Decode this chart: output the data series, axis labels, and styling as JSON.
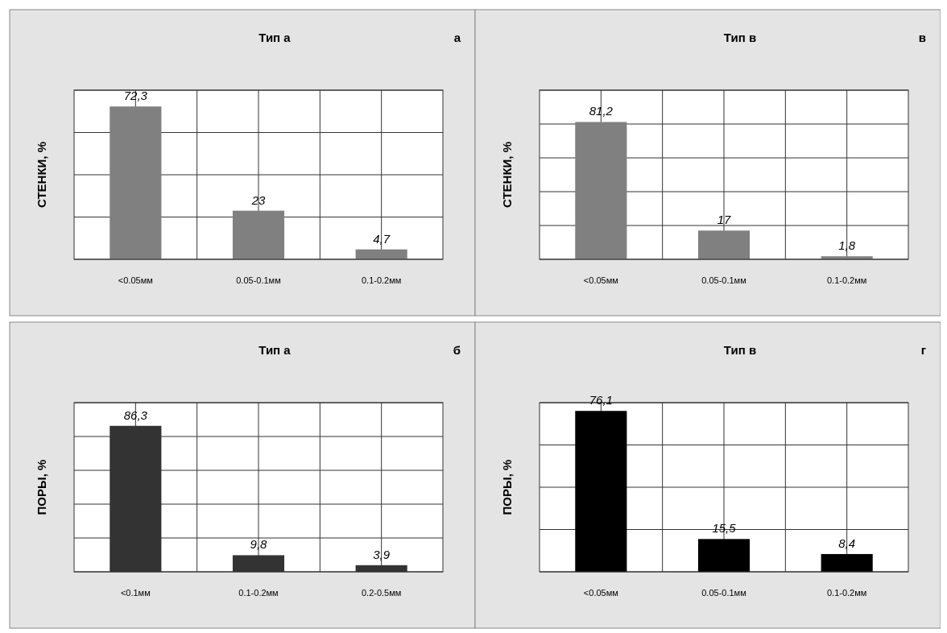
{
  "chart_data": [
    {
      "type": "bar",
      "title": "Тип а",
      "ylabel": "СТЕНКИ, %",
      "annotations": [
        "а"
      ],
      "categories": [
        "<0.05мм",
        "0.05-0.1мм",
        "0.1-0.2мм"
      ],
      "values": [
        72.3,
        23,
        4.7
      ],
      "color": "#808080",
      "ylim": [
        0,
        80
      ],
      "yticks": [
        {
          "value": 0,
          "label": null
        },
        {
          "value": 20,
          "label": null
        },
        {
          "value": 40,
          "label": null
        },
        {
          "value": 60,
          "label": null
        },
        {
          "value": 80,
          "label": null
        }
      ],
      "value_labels": [
        "72,3",
        "23",
        "4,7"
      ],
      "grid": true,
      "tick_labels": "x"
    },
    {
      "type": "bar",
      "title": "Тип в",
      "ylabel": "СТЕНКИ, %",
      "annotations": [
        "в"
      ],
      "categories": [
        "<0.05мм",
        "0.05-0.1мм",
        "0.1-0.2мм"
      ],
      "values": [
        81.2,
        17,
        1.8
      ],
      "color": "#808080",
      "ylim": [
        0,
        100
      ],
      "yticks": [
        {
          "value": 0,
          "label": null
        },
        {
          "value": 20,
          "label": null
        },
        {
          "value": 40,
          "label": null
        },
        {
          "value": 60,
          "label": null
        },
        {
          "value": 80,
          "label": null
        },
        {
          "value": 100,
          "label": null
        }
      ],
      "value_labels": [
        "81,2",
        "17",
        "1,8"
      ],
      "grid": true,
      "tick_labels": "x"
    },
    {
      "type": "bar",
      "title": "Тип а",
      "ylabel": "ПОРЫ, %",
      "annotations": [
        "б"
      ],
      "categories": [
        "<0.1мм",
        "0.1-0.2мм",
        "0.2-0.5мм"
      ],
      "values": [
        86.3,
        9.8,
        3.9
      ],
      "color": "#333333",
      "ylim": [
        0,
        100
      ],
      "yticks": [
        {
          "value": 0,
          "label": null
        },
        {
          "value": 20,
          "label": null
        },
        {
          "value": 40,
          "label": null
        },
        {
          "value": 60,
          "label": null
        },
        {
          "value": 80,
          "label": null
        },
        {
          "value": 100,
          "label": null
        }
      ],
      "value_labels": [
        "86,3",
        "9,8",
        "3,9"
      ],
      "grid": true,
      "tick_labels": "x"
    },
    {
      "type": "bar",
      "title": "Тип в",
      "ylabel": "ПОРЫ, %",
      "annotations": [
        "г"
      ],
      "categories": [
        "<0.05мм",
        "0.05-0.1мм",
        "0.1-0.2мм"
      ],
      "values": [
        76.1,
        15.5,
        8.4
      ],
      "color": "#000000",
      "ylim": [
        0,
        80
      ],
      "yticks": [
        {
          "value": 0,
          "label": null
        },
        {
          "value": 20,
          "label": null
        },
        {
          "value": 40,
          "label": null
        },
        {
          "value": 60,
          "label": null
        },
        {
          "value": 80,
          "label": null
        }
      ],
      "value_labels": [
        "76,1",
        "15,5",
        "8,4"
      ],
      "grid": true,
      "tick_labels": "x"
    }
  ]
}
